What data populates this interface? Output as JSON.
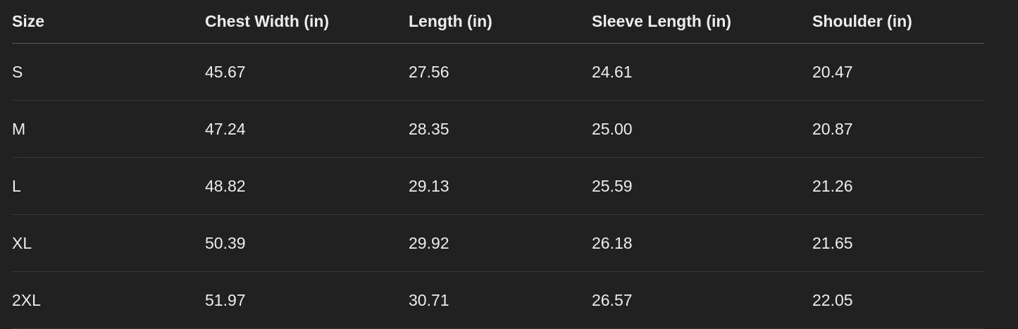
{
  "table": {
    "header": [
      "Size",
      "Chest Width (in)",
      "Length (in)",
      "Sleeve Length (in)",
      "Shoulder (in)"
    ],
    "rows": [
      [
        "S",
        "45.67",
        "27.56",
        "24.61",
        "20.47"
      ],
      [
        "M",
        "47.24",
        "28.35",
        "25.00",
        "20.87"
      ],
      [
        "L",
        "48.82",
        "29.13",
        "25.59",
        "21.26"
      ],
      [
        "XL",
        "50.39",
        "29.92",
        "26.18",
        "21.65"
      ],
      [
        "2XL",
        "51.97",
        "30.71",
        "26.57",
        "22.05"
      ]
    ]
  }
}
